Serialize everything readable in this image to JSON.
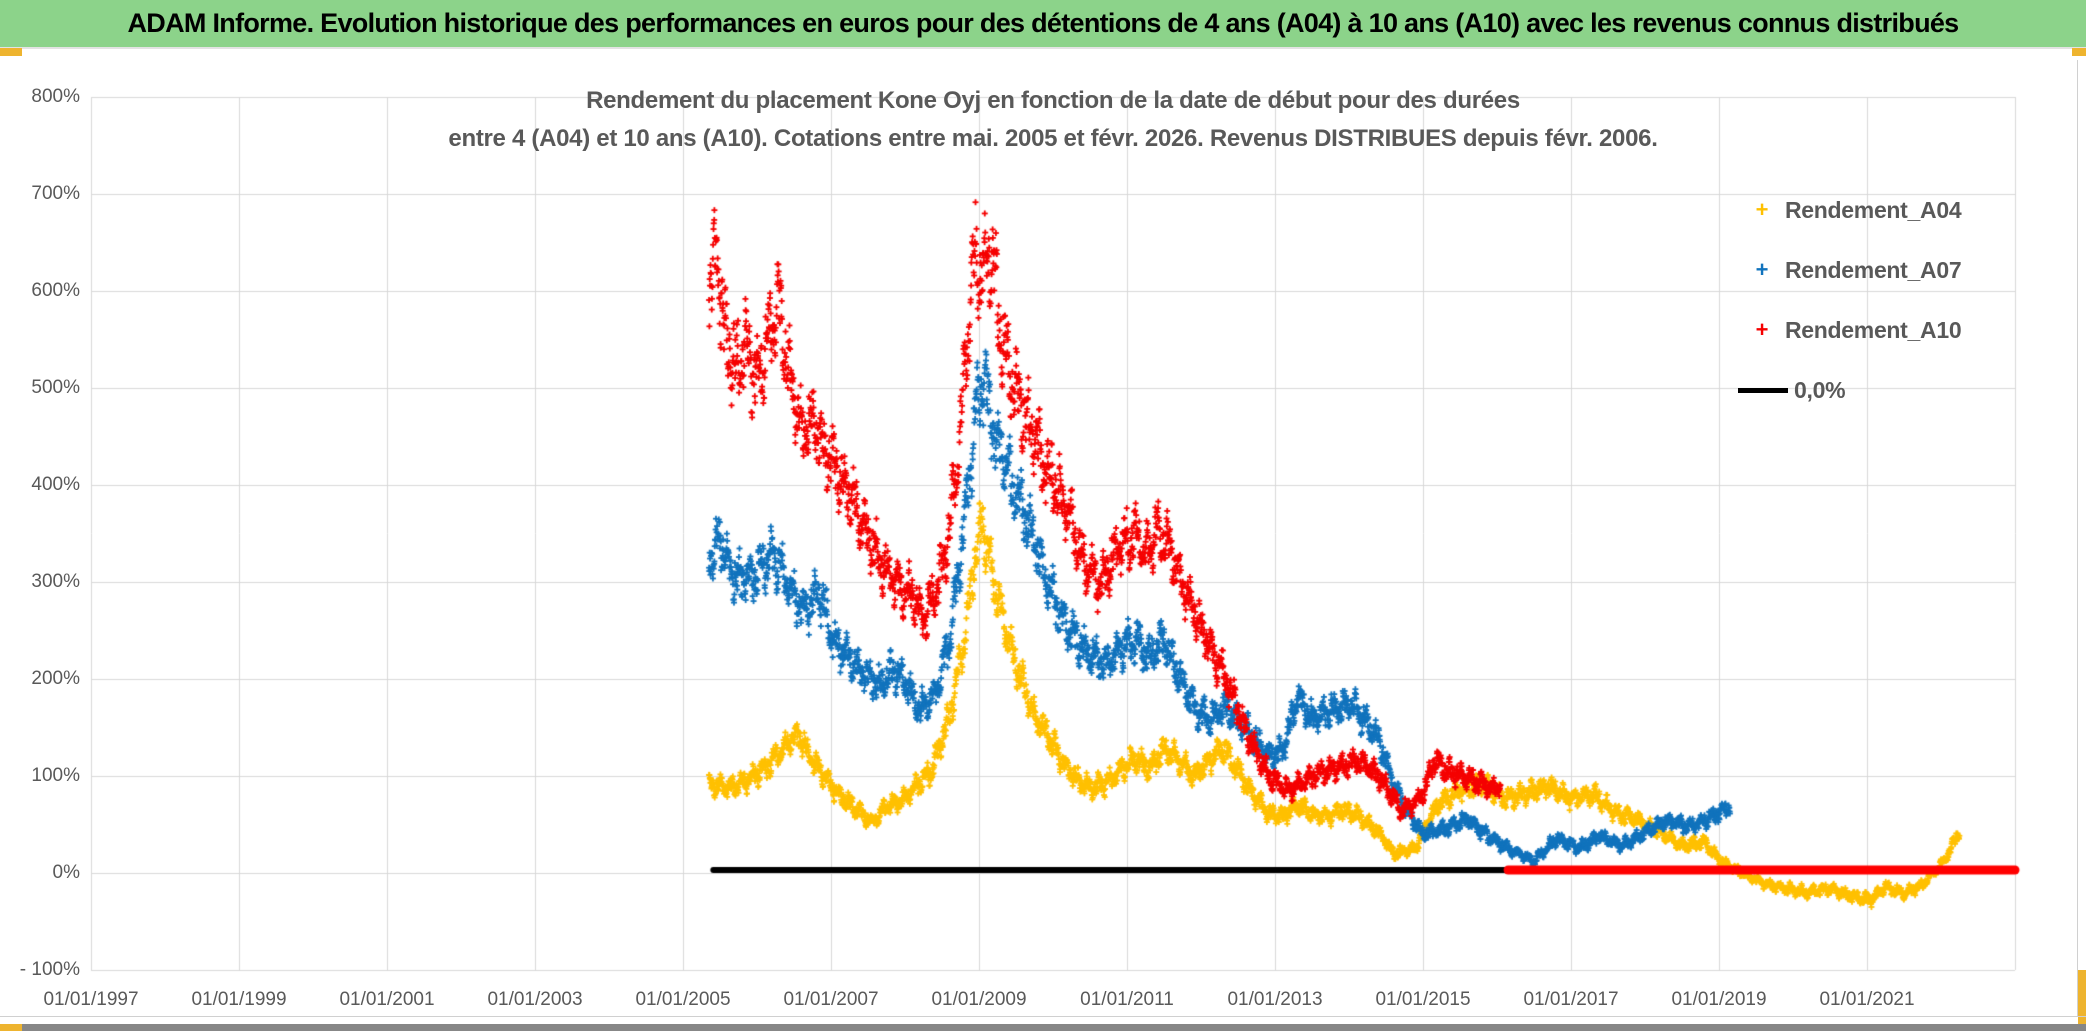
{
  "header": {
    "title": "ADAM Informe. Evolution historique des performances en euros pour des détentions de 4 ans (A04) à 10 ans (A10) avec les revenus connus distribués",
    "bg_color": "#8CD38A"
  },
  "chart": {
    "title_line1": "Rendement du placement Kone Oyj en fonction de la date de début pour des durées",
    "title_line2": "entre 4 (A04) et 10 ans (A10). Cotations entre mai. 2005 et févr. 2026. Revenus DISTRIBUES depuis févr. 2006.",
    "text_color": "#595959",
    "grid_color": "#d8d8d8",
    "accent_yellow": "#EEB42F"
  },
  "chart_data": {
    "type": "scatter",
    "title": "Rendement du placement Kone Oyj en fonction de la date de début pour des durées entre 4 (A04) et 10 ans (A10). Cotations entre mai. 2005 et févr. 2026. Revenus DISTRIBUES depuis févr. 2006.",
    "x_axis": {
      "kind": "date",
      "tick_labels": [
        "01/01/1997",
        "01/01/1999",
        "01/01/2001",
        "01/01/2003",
        "01/01/2005",
        "01/01/2007",
        "01/01/2009",
        "01/01/2011",
        "01/01/2013",
        "01/01/2015",
        "01/01/2017",
        "01/01/2019",
        "01/01/2021"
      ],
      "tick_years": [
        1997,
        1999,
        2001,
        2003,
        2005,
        2007,
        2009,
        2011,
        2013,
        2015,
        2017,
        2019,
        2021
      ],
      "axis_min_year": 1997,
      "axis_max_year": 2023,
      "grid": true
    },
    "y_axis": {
      "tick_labels": [
        "800%",
        "700%",
        "600%",
        "500%",
        "400%",
        "300%",
        "200%",
        "100%",
        "0%",
        "- 100%"
      ],
      "tick_values": [
        800,
        700,
        600,
        500,
        400,
        300,
        200,
        100,
        0,
        -100
      ],
      "min": -100,
      "max": 800,
      "unit": "%",
      "grid": true
    },
    "legend": {
      "position": "right",
      "entries": [
        {
          "label": "Rendement_A04",
          "color": "#FFC000",
          "marker": "plus"
        },
        {
          "label": "Rendement_A07",
          "color": "#1173BD",
          "marker": "plus"
        },
        {
          "label": "Rendement_A10",
          "color": "#F50000",
          "marker": "plus"
        },
        {
          "label": "0,0%",
          "color": "#000000",
          "marker": "line"
        }
      ]
    },
    "series": [
      {
        "name": "Rendement_A04",
        "color": "#FFC000",
        "marker": "plus",
        "points": [
          [
            2005.35,
            92
          ],
          [
            2005.6,
            88
          ],
          [
            2005.85,
            95
          ],
          [
            2006.1,
            108
          ],
          [
            2006.35,
            128
          ],
          [
            2006.55,
            145
          ],
          [
            2006.7,
            122
          ],
          [
            2006.9,
            100
          ],
          [
            2007.1,
            82
          ],
          [
            2007.35,
            65
          ],
          [
            2007.55,
            52
          ],
          [
            2007.75,
            68
          ],
          [
            2008.0,
            78
          ],
          [
            2008.35,
            105
          ],
          [
            2008.6,
            160
          ],
          [
            2008.8,
            240
          ],
          [
            2008.95,
            330
          ],
          [
            2009.05,
            360
          ],
          [
            2009.2,
            300
          ],
          [
            2009.35,
            255
          ],
          [
            2009.5,
            215
          ],
          [
            2009.7,
            170
          ],
          [
            2009.9,
            145
          ],
          [
            2010.1,
            118
          ],
          [
            2010.3,
            98
          ],
          [
            2010.5,
            88
          ],
          [
            2010.7,
            92
          ],
          [
            2010.9,
            105
          ],
          [
            2011.1,
            118
          ],
          [
            2011.3,
            108
          ],
          [
            2011.5,
            128
          ],
          [
            2011.7,
            118
          ],
          [
            2011.9,
            100
          ],
          [
            2012.1,
            115
          ],
          [
            2012.3,
            130
          ],
          [
            2012.5,
            105
          ],
          [
            2012.7,
            82
          ],
          [
            2012.9,
            62
          ],
          [
            2013.1,
            58
          ],
          [
            2013.3,
            70
          ],
          [
            2013.5,
            62
          ],
          [
            2013.7,
            58
          ],
          [
            2013.9,
            65
          ],
          [
            2014.1,
            60
          ],
          [
            2014.4,
            42
          ],
          [
            2014.6,
            20
          ],
          [
            2014.9,
            26
          ],
          [
            2015.2,
            72
          ],
          [
            2015.5,
            85
          ],
          [
            2015.8,
            92
          ],
          [
            2016.1,
            76
          ],
          [
            2016.4,
            82
          ],
          [
            2016.7,
            90
          ],
          [
            2017.0,
            76
          ],
          [
            2017.3,
            82
          ],
          [
            2017.6,
            62
          ],
          [
            2017.9,
            55
          ],
          [
            2018.2,
            42
          ],
          [
            2018.5,
            28
          ],
          [
            2018.8,
            32
          ],
          [
            2019.0,
            14
          ],
          [
            2019.3,
            0
          ],
          [
            2019.6,
            -10
          ],
          [
            2019.9,
            -16
          ],
          [
            2020.2,
            -20
          ],
          [
            2020.5,
            -16
          ],
          [
            2020.8,
            -24
          ],
          [
            2021.05,
            -28
          ],
          [
            2021.25,
            -14
          ],
          [
            2021.5,
            -22
          ],
          [
            2021.75,
            -12
          ],
          [
            2022.0,
            8
          ],
          [
            2022.15,
            28
          ],
          [
            2022.25,
            45
          ]
        ]
      },
      {
        "name": "Rendement_A07",
        "color": "#1173BD",
        "marker": "plus",
        "points": [
          [
            2005.35,
            330
          ],
          [
            2005.5,
            345
          ],
          [
            2005.65,
            310
          ],
          [
            2005.85,
            300
          ],
          [
            2006.05,
            315
          ],
          [
            2006.25,
            325
          ],
          [
            2006.45,
            290
          ],
          [
            2006.65,
            272
          ],
          [
            2006.85,
            288
          ],
          [
            2007.05,
            235
          ],
          [
            2007.25,
            220
          ],
          [
            2007.45,
            205
          ],
          [
            2007.65,
            195
          ],
          [
            2007.85,
            210
          ],
          [
            2008.05,
            190
          ],
          [
            2008.2,
            168
          ],
          [
            2008.4,
            185
          ],
          [
            2008.6,
            240
          ],
          [
            2008.8,
            360
          ],
          [
            2008.95,
            470
          ],
          [
            2009.05,
            510
          ],
          [
            2009.2,
            455
          ],
          [
            2009.35,
            420
          ],
          [
            2009.5,
            390
          ],
          [
            2009.7,
            355
          ],
          [
            2009.9,
            305
          ],
          [
            2010.1,
            265
          ],
          [
            2010.3,
            242
          ],
          [
            2010.5,
            225
          ],
          [
            2010.7,
            215
          ],
          [
            2010.9,
            232
          ],
          [
            2011.1,
            242
          ],
          [
            2011.3,
            222
          ],
          [
            2011.5,
            240
          ],
          [
            2011.7,
            205
          ],
          [
            2011.9,
            172
          ],
          [
            2012.1,
            158
          ],
          [
            2012.3,
            172
          ],
          [
            2012.5,
            158
          ],
          [
            2012.7,
            140
          ],
          [
            2012.9,
            122
          ],
          [
            2013.1,
            125
          ],
          [
            2013.3,
            182
          ],
          [
            2013.5,
            158
          ],
          [
            2013.75,
            168
          ],
          [
            2014.0,
            175
          ],
          [
            2014.2,
            158
          ],
          [
            2014.4,
            138
          ],
          [
            2014.6,
            92
          ],
          [
            2014.8,
            62
          ],
          [
            2015.0,
            40
          ],
          [
            2015.3,
            46
          ],
          [
            2015.6,
            56
          ],
          [
            2015.9,
            36
          ],
          [
            2016.2,
            24
          ],
          [
            2016.5,
            12
          ],
          [
            2016.8,
            36
          ],
          [
            2017.1,
            26
          ],
          [
            2017.4,
            38
          ],
          [
            2017.7,
            28
          ],
          [
            2018.0,
            42
          ],
          [
            2018.3,
            54
          ],
          [
            2018.6,
            48
          ],
          [
            2018.85,
            56
          ],
          [
            2019.05,
            64
          ],
          [
            2019.15,
            68
          ]
        ]
      },
      {
        "name": "Rendement_A10",
        "color": "#F50000",
        "marker": "plus",
        "points": [
          [
            2005.35,
            600
          ],
          [
            2005.45,
            635
          ],
          [
            2005.55,
            560
          ],
          [
            2005.7,
            520
          ],
          [
            2005.85,
            545
          ],
          [
            2006.0,
            505
          ],
          [
            2006.15,
            550
          ],
          [
            2006.3,
            585
          ],
          [
            2006.45,
            505
          ],
          [
            2006.6,
            455
          ],
          [
            2006.75,
            468
          ],
          [
            2006.9,
            440
          ],
          [
            2007.05,
            420
          ],
          [
            2007.2,
            398
          ],
          [
            2007.35,
            375
          ],
          [
            2007.5,
            345
          ],
          [
            2007.65,
            325
          ],
          [
            2007.8,
            305
          ],
          [
            2007.95,
            292
          ],
          [
            2008.1,
            288
          ],
          [
            2008.25,
            262
          ],
          [
            2008.4,
            288
          ],
          [
            2008.55,
            330
          ],
          [
            2008.7,
            420
          ],
          [
            2008.85,
            560
          ],
          [
            2008.95,
            645
          ],
          [
            2009.05,
            615
          ],
          [
            2009.15,
            648
          ],
          [
            2009.3,
            555
          ],
          [
            2009.45,
            505
          ],
          [
            2009.6,
            478
          ],
          [
            2009.75,
            448
          ],
          [
            2009.9,
            420
          ],
          [
            2010.05,
            398
          ],
          [
            2010.2,
            372
          ],
          [
            2010.35,
            330
          ],
          [
            2010.5,
            310
          ],
          [
            2010.65,
            295
          ],
          [
            2010.8,
            325
          ],
          [
            2010.95,
            342
          ],
          [
            2011.1,
            352
          ],
          [
            2011.25,
            330
          ],
          [
            2011.4,
            352
          ],
          [
            2011.55,
            338
          ],
          [
            2011.7,
            308
          ],
          [
            2011.85,
            278
          ],
          [
            2012.0,
            252
          ],
          [
            2012.15,
            228
          ],
          [
            2012.3,
            205
          ],
          [
            2012.45,
            178
          ],
          [
            2012.6,
            148
          ],
          [
            2012.75,
            122
          ],
          [
            2012.9,
            102
          ],
          [
            2013.05,
            92
          ],
          [
            2013.2,
            86
          ],
          [
            2013.35,
            92
          ],
          [
            2013.5,
            100
          ],
          [
            2013.65,
            104
          ],
          [
            2013.8,
            108
          ],
          [
            2013.95,
            112
          ],
          [
            2014.1,
            115
          ],
          [
            2014.25,
            110
          ],
          [
            2014.4,
            100
          ],
          [
            2014.55,
            84
          ],
          [
            2014.7,
            64
          ],
          [
            2014.85,
            70
          ],
          [
            2015.0,
            82
          ],
          [
            2015.15,
            116
          ],
          [
            2015.3,
            106
          ],
          [
            2015.45,
            102
          ],
          [
            2015.6,
            98
          ],
          [
            2015.75,
            92
          ],
          [
            2015.9,
            88
          ],
          [
            2016.05,
            90
          ]
        ]
      }
    ],
    "reference_lines": [
      {
        "name": "0,0%",
        "color": "#000000",
        "value": 0,
        "from_year": 2005.41,
        "to_year": 2016.15,
        "thickness": 6
      },
      {
        "name": "zero-line-red",
        "color": "#FF0000",
        "value": 0,
        "from_year": 2016.15,
        "to_year": 2023.0,
        "thickness": 9
      }
    ]
  }
}
